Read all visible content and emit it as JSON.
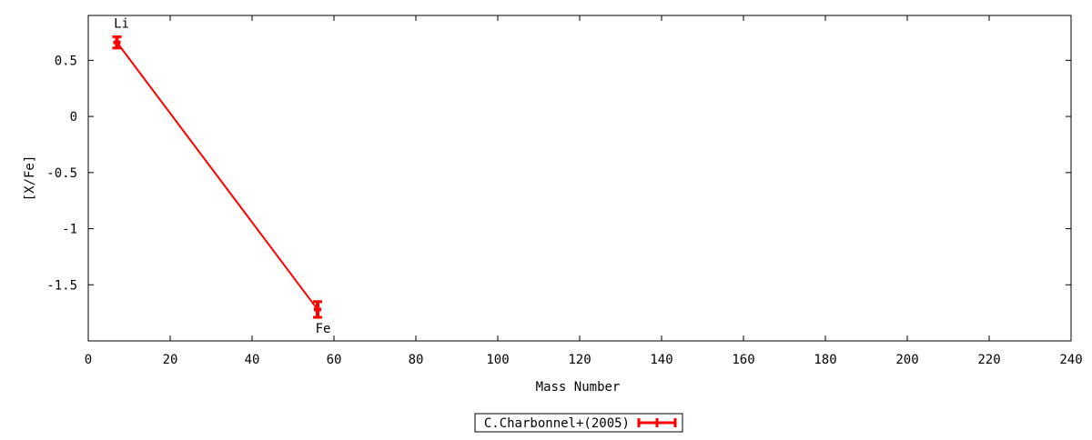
{
  "chart_data": {
    "type": "line",
    "title": "",
    "xlabel": "Mass Number",
    "ylabel": "[X/Fe]",
    "xlim": [
      0,
      240
    ],
    "ylim": [
      -2,
      0.9
    ],
    "xticks": [
      0,
      20,
      40,
      60,
      80,
      100,
      120,
      140,
      160,
      180,
      200,
      220,
      240
    ],
    "yticks": [
      0.5,
      0,
      -0.5,
      -1,
      -1.5
    ],
    "ytick_labels": [
      "0.5",
      "0",
      "-0.5",
      "-1",
      "-1.5"
    ],
    "grid": false,
    "legend_placement": "bottom-center",
    "series": [
      {
        "name": "C.Charbonnel+(2005)",
        "color": "#ff0000",
        "style": "lines with error bars",
        "points": [
          {
            "label": "Li",
            "x": 7,
            "y": 0.66,
            "yerr": 0.05
          },
          {
            "label": "Fe",
            "x": 56,
            "y": -1.72,
            "yerr": 0.07
          }
        ]
      }
    ]
  }
}
